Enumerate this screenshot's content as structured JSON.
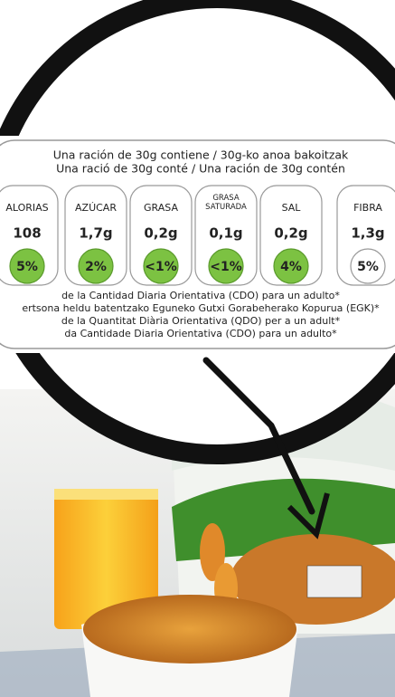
{
  "label": {
    "header": [
      "Una ración de 30g contiene / 30g-ko anoa bakoitzak",
      "Una ració de 30g conté / Una ración de 30g contén"
    ],
    "nutrients": [
      {
        "name": "ALORIAS",
        "amount": "108",
        "percent": "5%",
        "highlight": true
      },
      {
        "name": "AZÚCAR",
        "amount": "1,7g",
        "percent": "2%",
        "highlight": true
      },
      {
        "name": "GRASA",
        "amount": "0,2g",
        "percent": "<1%",
        "highlight": true
      },
      {
        "name": "GRASA SATURADA",
        "amount": "0,1g",
        "percent": "<1%",
        "highlight": true
      },
      {
        "name": "SAL",
        "amount": "0,2g",
        "percent": "4%",
        "highlight": true
      },
      {
        "name": "FIBRA",
        "amount": "1,3g",
        "percent": "5%",
        "highlight": false
      }
    ],
    "footer": [
      "de la Cantidad Diaria Orientativa (CDO) para un adulto*",
      "ertsona heldu batentzako Eguneko Gutxi Gorabeherako Kopurua (EGK)*",
      "de la Quantitat Diària Orientativa (QDO) per a un adult*",
      "da Cantidade Diaria Orientativa (CDO) para un adulto*"
    ]
  }
}
